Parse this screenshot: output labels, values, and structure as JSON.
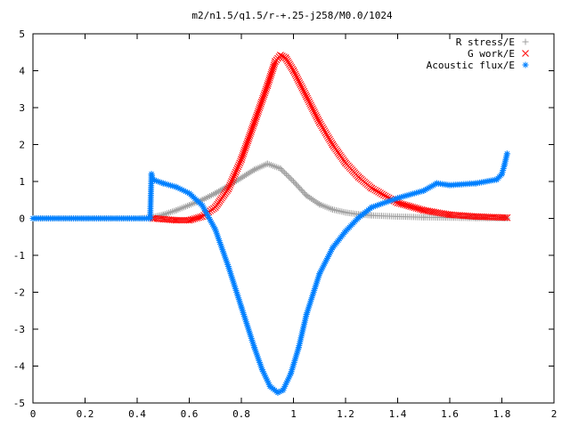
{
  "chart_data": {
    "type": "scatter",
    "title": "m2/n1.5/q1.5/r-+.25-j258/M0.0/1024",
    "xlabel": "",
    "ylabel": "",
    "xlim": [
      0,
      2
    ],
    "ylim": [
      -5,
      5
    ],
    "x_ticks": [
      "0",
      "0.2",
      "0.4",
      "0.6",
      "0.8",
      "1",
      "1.2",
      "1.4",
      "1.6",
      "1.8",
      "2"
    ],
    "y_ticks": [
      "5",
      "4",
      "3",
      "2",
      "1",
      "0",
      "-1",
      "-2",
      "-3",
      "-4",
      "-5"
    ],
    "grid": false,
    "legend_position": "top-right",
    "series": [
      {
        "name": "R stress/E",
        "marker": "+",
        "color": "#a0a0a0",
        "x": [
          0.0,
          0.2,
          0.4,
          0.45,
          0.5,
          0.55,
          0.6,
          0.65,
          0.7,
          0.75,
          0.8,
          0.85,
          0.9,
          0.95,
          1.0,
          1.05,
          1.1,
          1.15,
          1.2,
          1.25,
          1.3,
          1.4,
          1.5,
          1.6,
          1.7,
          1.82
        ],
        "y": [
          0.0,
          0.0,
          0.0,
          0.02,
          0.1,
          0.22,
          0.36,
          0.5,
          0.68,
          0.88,
          1.1,
          1.32,
          1.48,
          1.35,
          1.0,
          0.62,
          0.38,
          0.24,
          0.16,
          0.11,
          0.08,
          0.05,
          0.03,
          0.02,
          0.01,
          0.01
        ]
      },
      {
        "name": "G work/E",
        "marker": "x",
        "color": "#ff0000",
        "x": [
          0.46,
          0.5,
          0.55,
          0.6,
          0.65,
          0.7,
          0.75,
          0.8,
          0.85,
          0.9,
          0.93,
          0.95,
          0.97,
          1.0,
          1.05,
          1.1,
          1.15,
          1.2,
          1.25,
          1.3,
          1.4,
          1.5,
          1.6,
          1.7,
          1.82
        ],
        "y": [
          0.0,
          -0.02,
          -0.05,
          -0.05,
          0.05,
          0.3,
          0.8,
          1.6,
          2.6,
          3.6,
          4.25,
          4.42,
          4.35,
          4.0,
          3.3,
          2.6,
          2.0,
          1.5,
          1.12,
          0.82,
          0.42,
          0.22,
          0.1,
          0.05,
          0.02
        ]
      },
      {
        "name": "Acoustic flux/E",
        "marker": "*",
        "color": "#0080ff",
        "x": [
          0.0,
          0.2,
          0.4,
          0.45,
          0.455,
          0.46,
          0.5,
          0.55,
          0.6,
          0.65,
          0.7,
          0.75,
          0.8,
          0.85,
          0.88,
          0.91,
          0.94,
          0.96,
          0.99,
          1.02,
          1.05,
          1.1,
          1.15,
          1.2,
          1.25,
          1.3,
          1.4,
          1.5,
          1.55,
          1.6,
          1.7,
          1.78,
          1.8,
          1.81,
          1.82
        ],
        "y": [
          0.0,
          0.0,
          0.0,
          0.0,
          1.2,
          1.05,
          0.95,
          0.85,
          0.68,
          0.35,
          -0.3,
          -1.3,
          -2.4,
          -3.5,
          -4.1,
          -4.55,
          -4.72,
          -4.65,
          -4.2,
          -3.5,
          -2.6,
          -1.5,
          -0.8,
          -0.35,
          0.02,
          0.3,
          0.55,
          0.75,
          0.95,
          0.9,
          0.95,
          1.05,
          1.2,
          1.45,
          1.75
        ]
      }
    ]
  }
}
